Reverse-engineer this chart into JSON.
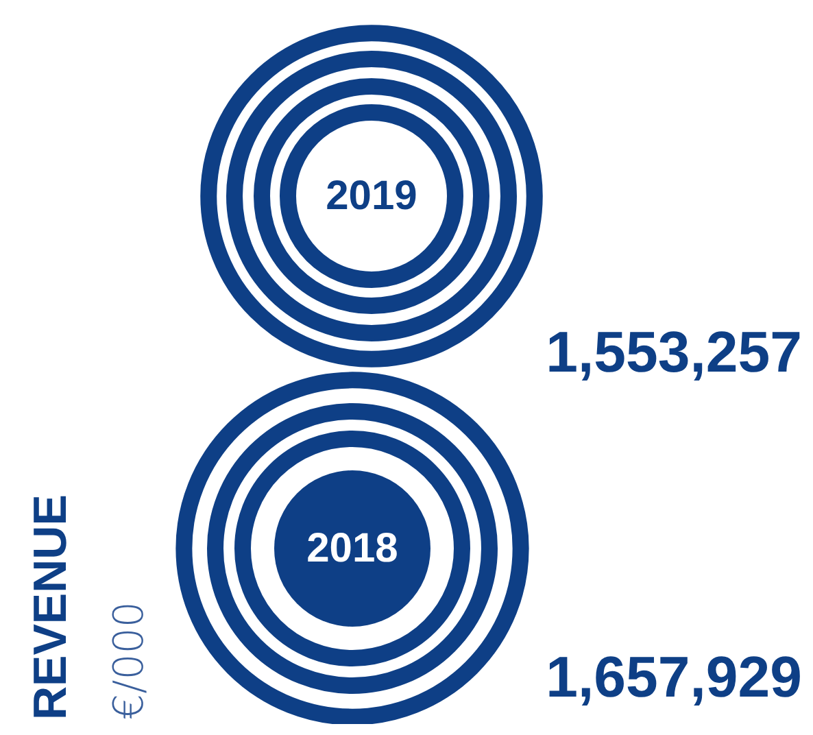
{
  "chart_data": {
    "type": "other",
    "ylabel": "REVENUE",
    "annotations": [
      "€/000"
    ],
    "categories": [
      "2019",
      "2018"
    ],
    "values": [
      1553257,
      1657929
    ],
    "value_labels": [
      "1,553,257",
      "1,657,929"
    ],
    "color": "#0e3f86"
  }
}
